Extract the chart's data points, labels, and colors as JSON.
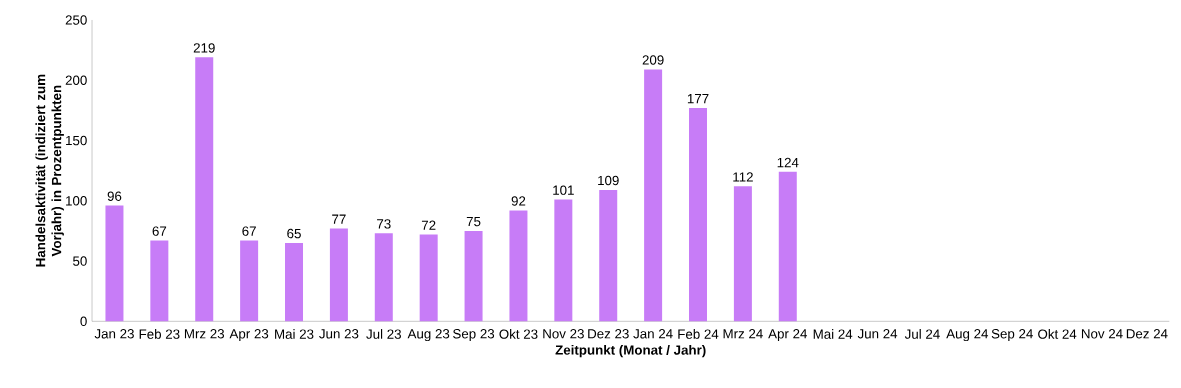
{
  "chart_data": {
    "type": "bar",
    "xlabel": "Zeitpunkt (Monat / Jahr)",
    "ylabel": "Handelsaktivität (indiziert zum Vorjahr) in Prozentpunkten",
    "categories": [
      "Jan 23",
      "Feb 23",
      "Mrz 23",
      "Apr 23",
      "Mai 23",
      "Jun 23",
      "Jul 23",
      "Aug 23",
      "Sep 23",
      "Okt 23",
      "Nov 23",
      "Dez 23",
      "Jan 24",
      "Feb 24",
      "Mrz 24",
      "Apr 24",
      "Mai 24",
      "Jun 24",
      "Jul 24",
      "Aug 24",
      "Sep 24",
      "Okt 24",
      "Nov 24",
      "Dez 24"
    ],
    "values": [
      96,
      67,
      219,
      67,
      65,
      77,
      73,
      72,
      75,
      92,
      101,
      109,
      209,
      177,
      112,
      124,
      null,
      null,
      null,
      null,
      null,
      null,
      null,
      null
    ],
    "color": "#c77cf7",
    "ylim": [
      0,
      250
    ],
    "yticks": [
      0,
      50,
      100,
      150,
      200,
      250
    ],
    "data_labels": true
  }
}
